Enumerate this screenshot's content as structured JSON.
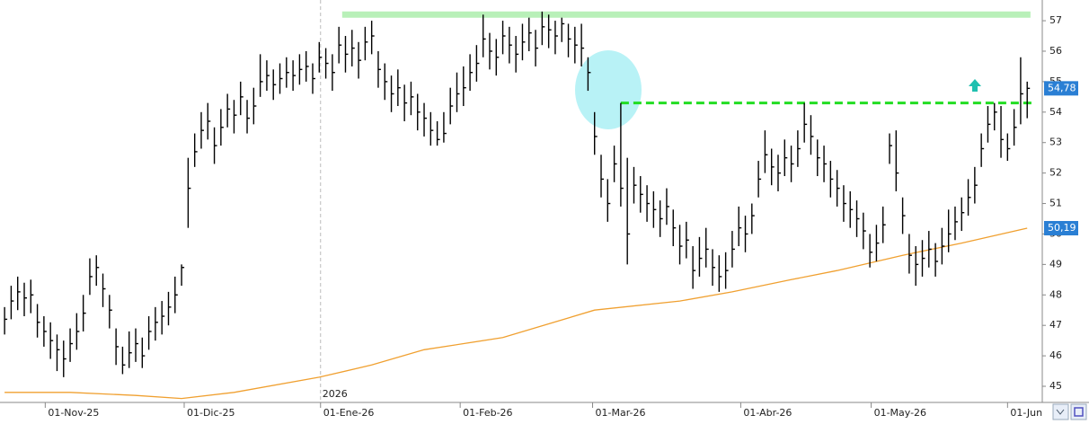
{
  "chart_data": {
    "type": "ohlc",
    "ylim": [
      44.47,
      57.68
    ],
    "yticks": [
      45,
      46,
      47,
      48,
      49,
      50,
      51,
      52,
      53,
      54,
      55,
      56,
      57
    ],
    "xlim": [
      -0.7,
      158.3
    ],
    "xticks": [
      {
        "value": 6.2,
        "label": "01-Nov-25"
      },
      {
        "value": 27.4,
        "label": "01-Dic-25"
      },
      {
        "value": 48.2,
        "label": "01-Ene-26"
      },
      {
        "value": 69.5,
        "label": "01-Feb-26"
      },
      {
        "value": 89.7,
        "label": "01-Mar-26"
      },
      {
        "value": 112.3,
        "label": "01-Abr-26"
      },
      {
        "value": 132.2,
        "label": "01-May-26"
      },
      {
        "value": 153.0,
        "label": "01-Jun"
      }
    ],
    "year_label": {
      "value": 48.2,
      "label": "2026"
    },
    "color": "#000000",
    "high": [
      47.6,
      48.3,
      48.6,
      48.4,
      48.5,
      47.7,
      47.3,
      47.1,
      46.7,
      46.5,
      46.9,
      47.4,
      48.0,
      49.2,
      49.3,
      48.7,
      48.0,
      46.9,
      46.3,
      46.8,
      46.9,
      46.6,
      47.3,
      47.6,
      47.8,
      48.1,
      48.6,
      49.0,
      52.5,
      53.3,
      54.0,
      54.3,
      53.5,
      54.1,
      54.6,
      54.4,
      55.0,
      54.4,
      54.8,
      55.9,
      55.7,
      55.4,
      55.6,
      55.8,
      55.7,
      55.9,
      56.0,
      55.6,
      56.3,
      56.1,
      55.9,
      56.8,
      56.5,
      56.7,
      56.3,
      56.8,
      57.0,
      56.0,
      55.6,
      55.2,
      55.4,
      54.9,
      55.0,
      54.6,
      54.3,
      54.0,
      53.7,
      54.0,
      54.8,
      55.3,
      55.5,
      55.9,
      56.2,
      57.2,
      56.6,
      56.4,
      57.0,
      56.8,
      56.5,
      56.9,
      57.1,
      56.7,
      57.3,
      57.2,
      57.0,
      57.1,
      56.9,
      56.8,
      56.9,
      55.8,
      54.0,
      52.6,
      51.8,
      52.9,
      54.3,
      52.5,
      52.2,
      51.9,
      51.6,
      51.4,
      51.1,
      51.5,
      50.8,
      50.3,
      50.4,
      49.6,
      49.9,
      50.2,
      49.5,
      49.3,
      49.4,
      50.1,
      50.9,
      50.6,
      51.0,
      52.4,
      53.4,
      52.8,
      52.6,
      53.1,
      52.9,
      53.4,
      54.3,
      53.9,
      53.1,
      52.9,
      52.4,
      52.1,
      51.6,
      51.4,
      51.1,
      50.7,
      50.0,
      50.3,
      50.9,
      53.3,
      53.4,
      51.2,
      50.0,
      49.6,
      49.8,
      50.1,
      49.7,
      50.2,
      50.8,
      50.9,
      51.2,
      51.8,
      52.2,
      53.3,
      54.2,
      54.3,
      54.2,
      53.3,
      54.1,
      55.8,
      55.0
    ],
    "low": [
      46.7,
      47.2,
      47.5,
      47.3,
      47.4,
      46.6,
      46.3,
      45.9,
      45.5,
      45.3,
      45.8,
      46.2,
      46.8,
      48.0,
      48.3,
      47.6,
      46.9,
      45.7,
      45.4,
      45.6,
      45.8,
      45.6,
      46.2,
      46.5,
      46.7,
      47.0,
      47.4,
      48.3,
      50.2,
      52.2,
      52.8,
      53.1,
      52.3,
      52.9,
      53.5,
      53.3,
      53.9,
      53.3,
      53.6,
      54.5,
      54.7,
      54.4,
      54.6,
      54.8,
      54.7,
      54.9,
      55.0,
      54.6,
      55.3,
      55.1,
      54.7,
      55.6,
      55.3,
      55.5,
      55.1,
      55.7,
      55.9,
      54.8,
      54.4,
      54.0,
      54.2,
      53.7,
      53.9,
      53.4,
      53.2,
      52.9,
      52.9,
      53.0,
      53.6,
      54.0,
      54.2,
      54.7,
      55.0,
      55.8,
      55.4,
      55.2,
      55.9,
      55.6,
      55.3,
      55.7,
      56.0,
      55.5,
      56.2,
      56.1,
      55.9,
      56.3,
      55.8,
      55.6,
      55.5,
      54.7,
      52.6,
      51.2,
      50.4,
      51.7,
      50.9,
      49.0,
      51.0,
      50.7,
      50.4,
      50.2,
      49.9,
      50.3,
      49.6,
      49.0,
      49.2,
      48.2,
      48.6,
      48.9,
      48.3,
      48.1,
      48.2,
      48.9,
      49.6,
      49.4,
      50.0,
      51.2,
      52.0,
      51.6,
      51.4,
      51.9,
      51.7,
      52.2,
      53.0,
      52.6,
      51.9,
      51.7,
      51.2,
      50.9,
      50.4,
      50.2,
      49.9,
      49.5,
      48.9,
      49.1,
      49.7,
      52.3,
      51.4,
      50.0,
      48.7,
      48.3,
      48.6,
      48.9,
      48.6,
      49.0,
      49.4,
      49.8,
      50.1,
      50.6,
      51.0,
      52.2,
      53.0,
      53.4,
      52.5,
      52.4,
      52.9,
      53.6,
      53.8
    ],
    "close": [
      47.2,
      47.8,
      48.1,
      47.9,
      48.0,
      47.1,
      46.8,
      46.5,
      46.2,
      45.9,
      46.4,
      46.8,
      47.4,
      48.6,
      48.9,
      48.2,
      47.5,
      46.3,
      45.7,
      46.1,
      46.4,
      46.0,
      46.8,
      47.1,
      47.3,
      47.6,
      48.0,
      48.9,
      51.5,
      52.7,
      53.4,
      53.7,
      52.9,
      53.5,
      54.1,
      53.9,
      54.5,
      53.8,
      54.2,
      55.0,
      55.2,
      54.9,
      55.1,
      55.3,
      55.2,
      55.4,
      55.5,
      55.1,
      55.8,
      55.6,
      55.3,
      56.2,
      55.9,
      56.1,
      55.7,
      56.3,
      56.5,
      55.4,
      55.0,
      54.6,
      54.8,
      54.3,
      54.5,
      54.0,
      53.8,
      53.4,
      53.1,
      53.3,
      54.2,
      54.6,
      54.8,
      55.3,
      55.6,
      56.4,
      56.0,
      55.8,
      56.5,
      56.2,
      55.9,
      56.3,
      56.6,
      56.1,
      56.8,
      56.7,
      56.5,
      56.9,
      56.4,
      56.2,
      56.1,
      55.3,
      53.2,
      51.8,
      51.0,
      52.3,
      51.5,
      50.0,
      51.6,
      51.3,
      51.0,
      50.8,
      50.5,
      50.9,
      50.2,
      49.6,
      49.8,
      48.8,
      49.2,
      49.5,
      48.9,
      48.6,
      48.8,
      49.5,
      50.2,
      50.0,
      50.6,
      51.8,
      52.6,
      52.2,
      52.0,
      52.5,
      52.3,
      52.8,
      53.6,
      53.2,
      52.5,
      52.3,
      51.8,
      51.5,
      51.0,
      50.8,
      50.5,
      50.1,
      49.4,
      49.7,
      50.3,
      52.9,
      52.0,
      50.6,
      49.3,
      49.0,
      49.2,
      49.5,
      49.1,
      49.6,
      50.0,
      50.4,
      50.7,
      51.2,
      51.6,
      52.8,
      53.6,
      54.0,
      53.1,
      52.8,
      53.5,
      54.6,
      54.78
    ],
    "moving_average": {
      "color": "#f0a030",
      "x": [
        0,
        10,
        20,
        27,
        35,
        48,
        56,
        64,
        76,
        90,
        103,
        111,
        120,
        127,
        137,
        146,
        156
      ],
      "values": [
        44.8,
        44.8,
        44.7,
        44.6,
        44.8,
        45.3,
        45.7,
        46.2,
        46.6,
        47.5,
        47.8,
        48.1,
        48.5,
        48.8,
        49.3,
        49.7,
        50.19
      ]
    },
    "resistance": {
      "value": 57.2,
      "from": 51.5,
      "to": 156.5,
      "color": "#b8f0b8"
    },
    "support": {
      "value": 54.3,
      "from": 94,
      "to": 157,
      "color": "#22dd22"
    },
    "price_labels": {
      "values": [
        54.78,
        50.19
      ],
      "value_labels": [
        "54,78",
        "50,19"
      ],
      "color": "#2a7fd4"
    }
  }
}
